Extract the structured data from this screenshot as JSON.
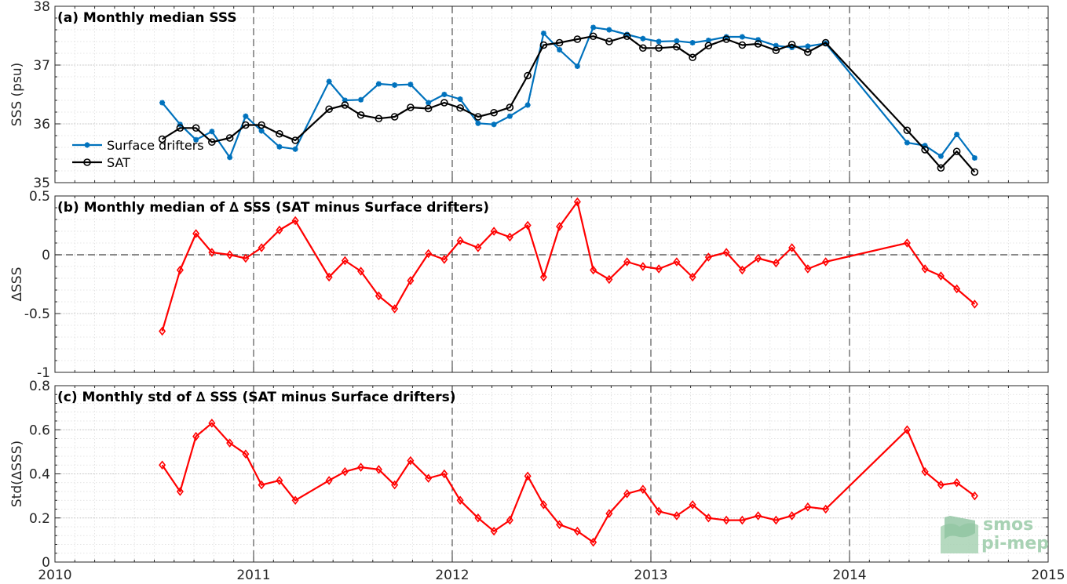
{
  "chart_data": [
    {
      "type": "line",
      "title": "(a) Monthly median SSS",
      "ylabel": "SSS (psu)",
      "xlim": [
        2010,
        2015
      ],
      "ylim": [
        35,
        38
      ],
      "yticks": [
        35,
        36,
        37,
        38
      ],
      "ytick_labels": [
        "35",
        "36",
        "37",
        "38"
      ],
      "grid": true,
      "legend_placement": "lower-left",
      "x": [
        2010.54,
        2010.63,
        2010.71,
        2010.79,
        2010.88,
        2010.96,
        2011.04,
        2011.13,
        2011.21,
        2011.38,
        2011.46,
        2011.54,
        2011.63,
        2011.71,
        2011.79,
        2011.88,
        2011.96,
        2012.04,
        2012.13,
        2012.21,
        2012.29,
        2012.38,
        2012.46,
        2012.54,
        2012.63,
        2012.71,
        2012.79,
        2012.88,
        2012.96,
        2013.04,
        2013.13,
        2013.21,
        2013.29,
        2013.38,
        2013.46,
        2013.54,
        2013.63,
        2013.71,
        2013.79,
        2013.88,
        2014.29,
        2014.38,
        2014.46,
        2014.54,
        2014.63
      ],
      "series": [
        {
          "name": "Surface drifters",
          "color": "#0072bd",
          "marker": "asterisk",
          "values": [
            36.36,
            35.99,
            35.73,
            35.87,
            35.43,
            36.13,
            35.88,
            35.61,
            35.57,
            36.72,
            36.4,
            36.41,
            36.68,
            36.66,
            36.67,
            36.36,
            36.5,
            36.42,
            36.01,
            35.99,
            36.13,
            36.32,
            37.54,
            37.26,
            36.98,
            37.64,
            37.6,
            37.52,
            37.45,
            37.4,
            37.41,
            37.38,
            37.42,
            37.48,
            37.48,
            37.43,
            37.33,
            37.3,
            37.32,
            37.37,
            35.68,
            35.63,
            35.45,
            35.82,
            35.42
          ]
        },
        {
          "name": "SAT",
          "color": "#000000",
          "marker": "circle",
          "values": [
            35.74,
            35.93,
            35.93,
            35.69,
            35.76,
            35.98,
            35.98,
            35.83,
            35.72,
            36.25,
            36.32,
            36.15,
            36.09,
            36.12,
            36.28,
            36.26,
            36.36,
            36.27,
            36.12,
            36.19,
            36.28,
            36.82,
            37.34,
            37.38,
            37.44,
            37.49,
            37.4,
            37.49,
            37.29,
            37.29,
            37.31,
            37.13,
            37.33,
            37.44,
            37.34,
            37.36,
            37.25,
            37.35,
            37.22,
            37.38,
            35.89,
            35.56,
            35.25,
            35.53,
            35.18
          ]
        }
      ]
    },
    {
      "type": "line",
      "title": "(b) Monthly median of ∆ SSS (SAT minus Surface drifters)",
      "ylabel": "∆SSS",
      "xlim": [
        2010,
        2015
      ],
      "ylim": [
        -1,
        0.5
      ],
      "yticks": [
        -1,
        -0.5,
        0,
        0.5
      ],
      "ytick_labels": [
        "-1",
        "-0.5",
        "0",
        "0.5"
      ],
      "grid": true,
      "zero_line": true,
      "x": [
        2010.54,
        2010.63,
        2010.71,
        2010.79,
        2010.88,
        2010.96,
        2011.04,
        2011.13,
        2011.21,
        2011.38,
        2011.46,
        2011.54,
        2011.63,
        2011.71,
        2011.79,
        2011.88,
        2011.96,
        2012.04,
        2012.13,
        2012.21,
        2012.29,
        2012.38,
        2012.46,
        2012.54,
        2012.63,
        2012.71,
        2012.79,
        2012.88,
        2012.96,
        2013.04,
        2013.13,
        2013.21,
        2013.29,
        2013.38,
        2013.46,
        2013.54,
        2013.63,
        2013.71,
        2013.79,
        2013.88,
        2014.29,
        2014.38,
        2014.46,
        2014.54,
        2014.63
      ],
      "series": [
        {
          "color": "#ff0000",
          "marker": "diamond",
          "values": [
            -0.65,
            -0.13,
            0.18,
            0.02,
            0.0,
            -0.03,
            0.06,
            0.21,
            0.29,
            -0.19,
            -0.05,
            -0.14,
            -0.35,
            -0.46,
            -0.22,
            0.01,
            -0.04,
            0.12,
            0.06,
            0.2,
            0.15,
            0.25,
            -0.19,
            0.24,
            0.45,
            -0.13,
            -0.21,
            -0.06,
            -0.1,
            -0.12,
            -0.06,
            -0.19,
            -0.02,
            0.02,
            -0.13,
            -0.03,
            -0.07,
            0.06,
            -0.12,
            -0.06,
            0.1,
            -0.12,
            -0.18,
            -0.29,
            -0.42
          ]
        }
      ]
    },
    {
      "type": "line",
      "title": "(c) Monthly std of ∆ SSS (SAT minus Surface drifters)",
      "ylabel": "Std(∆SSS)",
      "xlim": [
        2010,
        2015
      ],
      "ylim": [
        0,
        0.8
      ],
      "yticks": [
        0,
        0.2,
        0.4,
        0.6,
        0.8
      ],
      "ytick_labels": [
        "0",
        "0.2",
        "0.4",
        "0.6",
        "0.8"
      ],
      "xticks": [
        2010,
        2011,
        2012,
        2013,
        2014,
        2015
      ],
      "xtick_labels": [
        "2010",
        "2011",
        "2012",
        "2013",
        "2014",
        "2015"
      ],
      "grid": true,
      "x": [
        2010.54,
        2010.63,
        2010.71,
        2010.79,
        2010.88,
        2010.96,
        2011.04,
        2011.13,
        2011.21,
        2011.38,
        2011.46,
        2011.54,
        2011.63,
        2011.71,
        2011.79,
        2011.88,
        2011.96,
        2012.04,
        2012.13,
        2012.21,
        2012.29,
        2012.38,
        2012.46,
        2012.54,
        2012.63,
        2012.71,
        2012.79,
        2012.88,
        2012.96,
        2013.04,
        2013.13,
        2013.21,
        2013.29,
        2013.38,
        2013.46,
        2013.54,
        2013.63,
        2013.71,
        2013.79,
        2013.88,
        2014.29,
        2014.38,
        2014.46,
        2014.54,
        2014.63
      ],
      "series": [
        {
          "color": "#ff0000",
          "marker": "diamond",
          "values": [
            0.44,
            0.32,
            0.57,
            0.63,
            0.54,
            0.49,
            0.35,
            0.37,
            0.28,
            0.37,
            0.41,
            0.43,
            0.42,
            0.35,
            0.46,
            0.38,
            0.4,
            0.28,
            0.2,
            0.14,
            0.19,
            0.39,
            0.26,
            0.17,
            0.14,
            0.09,
            0.22,
            0.31,
            0.33,
            0.23,
            0.21,
            0.26,
            0.2,
            0.19,
            0.19,
            0.21,
            0.19,
            0.21,
            0.25,
            0.24,
            0.6,
            0.41,
            0.35,
            0.36,
            0.3
          ]
        }
      ]
    }
  ],
  "logo": {
    "line1": "smos",
    "line2": "pi-mep",
    "color": "#a8d2b4"
  }
}
